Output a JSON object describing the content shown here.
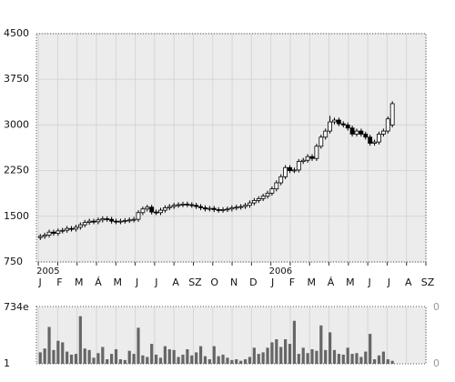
{
  "chart_data": [
    {
      "type": "candlestick",
      "x": [
        0.1,
        0.33,
        0.56,
        0.79,
        1.02,
        1.25,
        1.48,
        1.71,
        1.94,
        2.17,
        2.4,
        2.63,
        2.86,
        3.09,
        3.32,
        3.55,
        3.78,
        4.01,
        4.24,
        4.47,
        4.7,
        4.93,
        5.16,
        5.39,
        5.62,
        5.85,
        6.08,
        6.31,
        6.54,
        6.77,
        7,
        7.23,
        7.46,
        7.69,
        7.92,
        8.15,
        8.38,
        8.61,
        8.84,
        9.07,
        9.3,
        9.53,
        9.76,
        9.99,
        10.22,
        10.45,
        10.68,
        10.91,
        11.14,
        11.37,
        11.6,
        11.83,
        12.06,
        12.29,
        12.52,
        12.75,
        12.98,
        13.21,
        13.44,
        13.67,
        13.9,
        14.13,
        14.36,
        14.59,
        14.82,
        15.05,
        15.28,
        15.51,
        15.74,
        15.97,
        16.2,
        16.43,
        16.66,
        16.89,
        17.12,
        17.35,
        17.58,
        17.81,
        18.04,
        18.27
      ],
      "open": [
        1150,
        1170,
        1190,
        1240,
        1220,
        1260,
        1270,
        1300,
        1290,
        1320,
        1360,
        1400,
        1420,
        1410,
        1440,
        1460,
        1450,
        1420,
        1410,
        1420,
        1430,
        1440,
        1450,
        1560,
        1620,
        1650,
        1570,
        1560,
        1600,
        1640,
        1660,
        1680,
        1690,
        1700,
        1690,
        1680,
        1660,
        1640,
        1620,
        1630,
        1610,
        1600,
        1610,
        1620,
        1640,
        1650,
        1660,
        1680,
        1720,
        1760,
        1790,
        1830,
        1880,
        1950,
        2050,
        2150,
        2300,
        2250,
        2260,
        2400,
        2420,
        2480,
        2450,
        2650,
        2800,
        2900,
        3050,
        3080,
        3020,
        3000,
        2950,
        2850,
        2900,
        2850,
        2800,
        2700,
        2720,
        2850,
        2900,
        3000
      ],
      "high": [
        1210,
        1230,
        1280,
        1280,
        1300,
        1310,
        1340,
        1340,
        1360,
        1400,
        1440,
        1460,
        1460,
        1480,
        1500,
        1500,
        1490,
        1460,
        1460,
        1470,
        1480,
        1490,
        1600,
        1660,
        1690,
        1690,
        1610,
        1640,
        1680,
        1700,
        1720,
        1730,
        1740,
        1740,
        1730,
        1720,
        1700,
        1680,
        1670,
        1670,
        1650,
        1650,
        1660,
        1680,
        1690,
        1700,
        1720,
        1760,
        1800,
        1830,
        1870,
        1920,
        1990,
        2090,
        2190,
        2340,
        2340,
        2300,
        2440,
        2460,
        2520,
        2520,
        2690,
        2840,
        2940,
        3150,
        3120,
        3120,
        3060,
        3040,
        2990,
        2940,
        2940,
        2890,
        2840,
        2760,
        2890,
        2940,
        3140,
        3390
      ],
      "low": [
        1110,
        1130,
        1150,
        1180,
        1180,
        1220,
        1230,
        1250,
        1250,
        1280,
        1320,
        1360,
        1370,
        1370,
        1400,
        1410,
        1380,
        1370,
        1370,
        1380,
        1390,
        1400,
        1410,
        1520,
        1580,
        1530,
        1520,
        1520,
        1560,
        1600,
        1620,
        1640,
        1650,
        1650,
        1640,
        1620,
        1600,
        1580,
        1580,
        1570,
        1560,
        1560,
        1570,
        1580,
        1600,
        1610,
        1620,
        1640,
        1680,
        1720,
        1750,
        1790,
        1840,
        1910,
        2010,
        2110,
        2210,
        2210,
        2220,
        2360,
        2380,
        2410,
        2410,
        2610,
        2760,
        2860,
        3010,
        2980,
        2960,
        2910,
        2810,
        2810,
        2810,
        2760,
        2660,
        2660,
        2680,
        2810,
        2860,
        2960
      ],
      "close": [
        1170,
        1190,
        1240,
        1220,
        1260,
        1270,
        1300,
        1290,
        1320,
        1360,
        1400,
        1420,
        1410,
        1440,
        1460,
        1450,
        1420,
        1410,
        1420,
        1430,
        1440,
        1450,
        1560,
        1620,
        1650,
        1570,
        1560,
        1600,
        1640,
        1660,
        1680,
        1690,
        1700,
        1690,
        1680,
        1660,
        1640,
        1620,
        1630,
        1610,
        1600,
        1610,
        1620,
        1640,
        1650,
        1660,
        1680,
        1720,
        1760,
        1790,
        1830,
        1880,
        1950,
        2050,
        2150,
        2300,
        2250,
        2260,
        2400,
        2420,
        2480,
        2450,
        2650,
        2800,
        2900,
        3050,
        3080,
        3020,
        3000,
        2950,
        2850,
        2900,
        2850,
        2800,
        2700,
        2720,
        2850,
        2900,
        3100,
        3350
      ],
      "xlim": [
        -0.1,
        20
      ],
      "xticks": [
        {
          "value": 0,
          "label": "J"
        },
        {
          "value": 1,
          "label": "F"
        },
        {
          "value": 2,
          "label": "M"
        },
        {
          "value": 3,
          "label": "Á"
        },
        {
          "value": 4,
          "label": "M"
        },
        {
          "value": 5,
          "label": "J"
        },
        {
          "value": 6,
          "label": "J"
        },
        {
          "value": 7,
          "label": "A"
        },
        {
          "value": 8,
          "label": "SZ"
        },
        {
          "value": 9,
          "label": "O"
        },
        {
          "value": 10,
          "label": "N"
        },
        {
          "value": 11,
          "label": "D"
        },
        {
          "value": 12,
          "label": "J"
        },
        {
          "value": 13,
          "label": "F"
        },
        {
          "value": 14,
          "label": "M"
        },
        {
          "value": 15,
          "label": "Á"
        },
        {
          "value": 16,
          "label": "M"
        },
        {
          "value": 17,
          "label": "J"
        },
        {
          "value": 18,
          "label": "J"
        },
        {
          "value": 19,
          "label": "A"
        },
        {
          "value": 20,
          "label": "SZ"
        }
      ],
      "year_labels": [
        {
          "value": 0,
          "label": "2005"
        },
        {
          "value": 12,
          "label": "2006"
        }
      ],
      "ylim": [
        750,
        4500
      ],
      "yticks": [
        750,
        1500,
        2250,
        3000,
        3750,
        4500
      ],
      "grid": true
    },
    {
      "type": "bar",
      "x": [
        0.1,
        0.33,
        0.56,
        0.79,
        1.02,
        1.25,
        1.48,
        1.71,
        1.94,
        2.17,
        2.4,
        2.63,
        2.86,
        3.09,
        3.32,
        3.55,
        3.78,
        4.01,
        4.24,
        4.47,
        4.7,
        4.93,
        5.16,
        5.39,
        5.62,
        5.85,
        6.08,
        6.31,
        6.54,
        6.77,
        7,
        7.23,
        7.46,
        7.69,
        7.92,
        8.15,
        8.38,
        8.61,
        8.84,
        9.07,
        9.3,
        9.53,
        9.76,
        9.99,
        10.22,
        10.45,
        10.68,
        10.91,
        11.14,
        11.37,
        11.6,
        11.83,
        12.06,
        12.29,
        12.52,
        12.75,
        12.98,
        13.21,
        13.44,
        13.67,
        13.9,
        14.13,
        14.36,
        14.59,
        14.82,
        15.05,
        15.28,
        15.51,
        15.74,
        15.97,
        16.2,
        16.43,
        16.66,
        16.89,
        17.12,
        17.35,
        17.58,
        17.81,
        18.04,
        18.27
      ],
      "values": [
        150,
        200,
        480,
        180,
        300,
        280,
        160,
        120,
        130,
        620,
        200,
        180,
        80,
        140,
        220,
        60,
        130,
        190,
        60,
        50,
        170,
        130,
        470,
        110,
        90,
        260,
        120,
        80,
        230,
        190,
        180,
        90,
        120,
        190,
        110,
        150,
        230,
        100,
        60,
        230,
        100,
        120,
        80,
        50,
        60,
        40,
        60,
        90,
        210,
        130,
        150,
        210,
        280,
        320,
        220,
        320,
        260,
        560,
        130,
        210,
        140,
        190,
        170,
        500,
        180,
        410,
        180,
        130,
        120,
        210,
        130,
        140,
        90,
        160,
        390,
        60,
        110,
        160,
        60,
        40
      ],
      "color": "#666666",
      "xlim": [
        -0.1,
        20
      ],
      "ylim": [
        1,
        734
      ],
      "yticks": [
        {
          "value": 734,
          "label": "734e"
        },
        1
      ],
      "right_labels": [
        "0",
        "0"
      ]
    }
  ]
}
